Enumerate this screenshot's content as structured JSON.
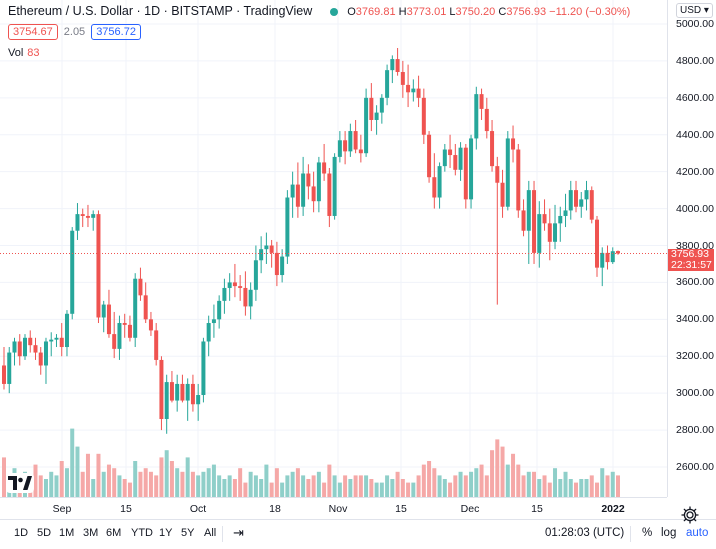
{
  "legend": {
    "title": "Ethereum / U.S. Dollar · 1D · BITSTAMP · TradingView",
    "o_label": "O",
    "o_value": "3769.81",
    "h_label": "H",
    "h_value": "3773.01",
    "l_label": "L",
    "l_value": "3750.20",
    "c_label": "C",
    "c_value": "3756.93",
    "change": "−11.20 (−0.30%)",
    "bid": "3754.67",
    "spread": "2.05",
    "ask": "3756.72",
    "vol_label": "Vol",
    "vol_value": "83"
  },
  "price_axis": {
    "currency": "USD",
    "ticks": [
      "5000.00",
      "4800.00",
      "4600.00",
      "4400.00",
      "4200.00",
      "4000.00",
      "3800.00",
      "3600.00",
      "3400.00",
      "3200.00",
      "3000.00",
      "2800.00",
      "2600.00"
    ],
    "last_price": "3756.93",
    "countdown": "22:31:57"
  },
  "time_axis": {
    "ticks": [
      "Sep",
      "15",
      "Oct",
      "18",
      "Nov",
      "15",
      "Dec",
      "15",
      "2022"
    ]
  },
  "toolbar": {
    "ranges": [
      "1D",
      "5D",
      "1M",
      "3M",
      "6M",
      "YTD",
      "1Y",
      "5Y",
      "All"
    ],
    "clock": "01:28:03 (UTC)",
    "percent": "%",
    "log": "log",
    "auto": "auto"
  },
  "colors": {
    "up": "#26a69a",
    "down": "#ef5350",
    "vol_up": "#8fcfc9",
    "vol_down": "#f5a8a7",
    "grid": "#f0f3fa",
    "accent": "#2962ff"
  },
  "chart_data": {
    "type": "candlestick",
    "symbol": "ETH/USD",
    "interval": "1D",
    "ylim": [
      2450,
      5100
    ],
    "grid": true,
    "candles": [
      [
        3150,
        3250,
        3020,
        3050
      ],
      [
        3050,
        3250,
        3000,
        3220
      ],
      [
        3220,
        3300,
        3150,
        3280
      ],
      [
        3280,
        3320,
        3150,
        3200
      ],
      [
        3200,
        3320,
        3180,
        3300
      ],
      [
        3300,
        3340,
        3220,
        3260
      ],
      [
        3260,
        3300,
        3180,
        3220
      ],
      [
        3220,
        3250,
        3100,
        3150
      ],
      [
        3150,
        3300,
        3050,
        3280
      ],
      [
        3280,
        3330,
        3200,
        3290
      ],
      [
        3290,
        3320,
        3250,
        3300
      ],
      [
        3300,
        3380,
        3200,
        3250
      ],
      [
        3250,
        3450,
        3200,
        3430
      ],
      [
        3430,
        3900,
        3400,
        3880
      ],
      [
        3880,
        4030,
        3830,
        3970
      ],
      [
        3970,
        4000,
        3900,
        3960
      ],
      [
        3960,
        4020,
        3900,
        3950
      ],
      [
        3950,
        3990,
        3880,
        3970
      ],
      [
        3970,
        3990,
        3380,
        3410
      ],
      [
        3410,
        3500,
        3330,
        3480
      ],
      [
        3480,
        3560,
        3300,
        3320
      ],
      [
        3320,
        3440,
        3190,
        3240
      ],
      [
        3240,
        3420,
        3180,
        3380
      ],
      [
        3380,
        3430,
        3300,
        3370
      ],
      [
        3370,
        3420,
        3280,
        3300
      ],
      [
        3300,
        3650,
        3250,
        3620
      ],
      [
        3620,
        3680,
        3500,
        3530
      ],
      [
        3530,
        3600,
        3380,
        3400
      ],
      [
        3400,
        3440,
        3310,
        3340
      ],
      [
        3340,
        3380,
        3150,
        3180
      ],
      [
        3180,
        3200,
        2800,
        2860
      ],
      [
        2860,
        3100,
        2780,
        3060
      ],
      [
        3060,
        3120,
        2950,
        2960
      ],
      [
        2960,
        3100,
        2900,
        3050
      ],
      [
        3050,
        3100,
        2950,
        2960
      ],
      [
        2960,
        3080,
        2850,
        3050
      ],
      [
        3050,
        3100,
        2900,
        2940
      ],
      [
        2940,
        3050,
        2850,
        2990
      ],
      [
        2990,
        3300,
        2950,
        3280
      ],
      [
        3280,
        3420,
        3200,
        3380
      ],
      [
        3380,
        3480,
        3300,
        3400
      ],
      [
        3400,
        3530,
        3350,
        3500
      ],
      [
        3500,
        3620,
        3430,
        3570
      ],
      [
        3570,
        3650,
        3500,
        3600
      ],
      [
        3600,
        3700,
        3520,
        3580
      ],
      [
        3580,
        3640,
        3500,
        3570
      ],
      [
        3570,
        3660,
        3420,
        3470
      ],
      [
        3470,
        3600,
        3400,
        3560
      ],
      [
        3560,
        3800,
        3500,
        3720
      ],
      [
        3720,
        3850,
        3650,
        3780
      ],
      [
        3780,
        3870,
        3700,
        3800
      ],
      [
        3800,
        3830,
        3680,
        3760
      ],
      [
        3760,
        3820,
        3580,
        3640
      ],
      [
        3640,
        3780,
        3600,
        3740
      ],
      [
        3740,
        4100,
        3700,
        4060
      ],
      [
        4060,
        4200,
        3950,
        4130
      ],
      [
        4130,
        4250,
        3950,
        4010
      ],
      [
        4010,
        4280,
        3960,
        4190
      ],
      [
        4190,
        4240,
        4050,
        4120
      ],
      [
        4120,
        4200,
        3980,
        4040
      ],
      [
        4040,
        4280,
        3980,
        4250
      ],
      [
        4250,
        4350,
        4150,
        4190
      ],
      [
        4190,
        4220,
        3900,
        3960
      ],
      [
        3960,
        4300,
        3940,
        4280
      ],
      [
        4280,
        4420,
        4250,
        4370
      ],
      [
        4370,
        4420,
        4240,
        4310
      ],
      [
        4310,
        4460,
        4280,
        4420
      ],
      [
        4420,
        4480,
        4300,
        4320
      ],
      [
        4320,
        4400,
        4250,
        4300
      ],
      [
        4300,
        4650,
        4280,
        4600
      ],
      [
        4600,
        4680,
        4420,
        4480
      ],
      [
        4480,
        4560,
        4400,
        4520
      ],
      [
        4520,
        4620,
        4460,
        4600
      ],
      [
        4600,
        4780,
        4560,
        4750
      ],
      [
        4750,
        4830,
        4680,
        4810
      ],
      [
        4810,
        4870,
        4720,
        4740
      ],
      [
        4740,
        4800,
        4600,
        4670
      ],
      [
        4670,
        4780,
        4550,
        4630
      ],
      [
        4630,
        4700,
        4580,
        4650
      ],
      [
        4650,
        4720,
        4550,
        4600
      ],
      [
        4600,
        4650,
        4350,
        4400
      ],
      [
        4400,
        4420,
        4140,
        4170
      ],
      [
        4170,
        4300,
        4000,
        4060
      ],
      [
        4060,
        4250,
        4000,
        4230
      ],
      [
        4230,
        4350,
        4200,
        4320
      ],
      [
        4320,
        4400,
        4220,
        4290
      ],
      [
        4290,
        4350,
        4180,
        4210
      ],
      [
        4210,
        4360,
        4150,
        4330
      ],
      [
        4330,
        4350,
        4000,
        4050
      ],
      [
        4050,
        4400,
        4000,
        4380
      ],
      [
        4380,
        4660,
        4320,
        4620
      ],
      [
        4620,
        4650,
        4480,
        4540
      ],
      [
        4540,
        4600,
        4380,
        4420
      ],
      [
        4420,
        4480,
        4200,
        4230
      ],
      [
        4230,
        4280,
        3480,
        4140
      ],
      [
        4140,
        4210,
        3950,
        4010
      ],
      [
        4010,
        4420,
        3990,
        4380
      ],
      [
        4380,
        4450,
        4250,
        4320
      ],
      [
        4320,
        4350,
        3950,
        3990
      ],
      [
        3990,
        4050,
        3850,
        3880
      ],
      [
        3880,
        4150,
        3700,
        4100
      ],
      [
        4100,
        4150,
        3700,
        3760
      ],
      [
        3760,
        4040,
        3680,
        3970
      ],
      [
        3970,
        4050,
        3880,
        3920
      ],
      [
        3920,
        4000,
        3720,
        3820
      ],
      [
        3820,
        4020,
        3780,
        3920
      ],
      [
        3920,
        4010,
        3820,
        3960
      ],
      [
        3960,
        4080,
        3900,
        3990
      ],
      [
        3990,
        4150,
        3940,
        4100
      ],
      [
        4100,
        4150,
        3980,
        4010
      ],
      [
        4010,
        4090,
        3950,
        4050
      ],
      [
        4050,
        4150,
        3990,
        4100
      ],
      [
        4100,
        4120,
        3920,
        3940
      ],
      [
        3940,
        3960,
        3630,
        3680
      ],
      [
        3680,
        3790,
        3580,
        3760
      ],
      [
        3760,
        3800,
        3670,
        3710
      ],
      [
        3710,
        3790,
        3700,
        3769
      ],
      [
        3769.81,
        3773.01,
        3750.2,
        3756.93
      ]
    ],
    "volume_relative": [
      0.55,
      0.3,
      0.4,
      0.25,
      0.35,
      0.2,
      0.45,
      0.3,
      0.25,
      0.35,
      0.3,
      0.5,
      0.4,
      0.95,
      0.7,
      0.35,
      0.6,
      0.25,
      0.6,
      0.35,
      0.45,
      0.4,
      0.3,
      0.25,
      0.2,
      0.5,
      0.35,
      0.4,
      0.35,
      0.3,
      0.55,
      0.65,
      0.5,
      0.4,
      0.35,
      0.55,
      0.35,
      0.3,
      0.35,
      0.4,
      0.45,
      0.3,
      0.25,
      0.3,
      0.25,
      0.4,
      0.2,
      0.35,
      0.3,
      0.25,
      0.45,
      0.2,
      0.4,
      0.2,
      0.3,
      0.35,
      0.4,
      0.3,
      0.25,
      0.3,
      0.35,
      0.2,
      0.45,
      0.3,
      0.2,
      0.3,
      0.25,
      0.3,
      0.3,
      0.3,
      0.25,
      0.2,
      0.2,
      0.3,
      0.25,
      0.35,
      0.25,
      0.2,
      0.2,
      0.3,
      0.45,
      0.5,
      0.4,
      0.3,
      0.25,
      0.2,
      0.3,
      0.35,
      0.3,
      0.35,
      0.4,
      0.45,
      0.3,
      0.65,
      0.8,
      0.7,
      0.45,
      0.6,
      0.45,
      0.3,
      0.35,
      0.35,
      0.25,
      0.3,
      0.2,
      0.4,
      0.25,
      0.35,
      0.25,
      0.2,
      0.25,
      0.25,
      0.3,
      0.2,
      0.4,
      0.3,
      0.35,
      0.3,
      0.35,
      0.05
    ]
  }
}
